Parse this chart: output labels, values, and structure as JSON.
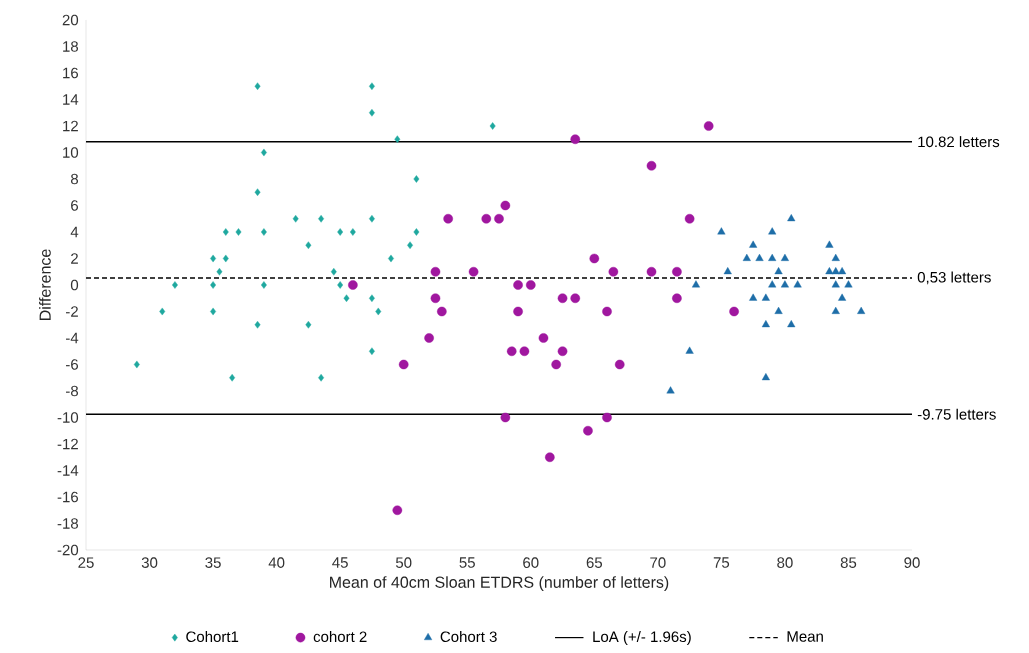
{
  "chart_data": {
    "type": "scatter",
    "xlabel": "Mean of 40cm Sloan ETDRS (number of letters)",
    "ylabel": "Difference",
    "xlim": [
      25,
      90
    ],
    "xticks": [
      25,
      30,
      35,
      40,
      45,
      50,
      55,
      60,
      65,
      70,
      75,
      80,
      85,
      90
    ],
    "ylim": [
      -20,
      20
    ],
    "yticks": [
      -20,
      -18,
      -16,
      -14,
      -12,
      -10,
      -8,
      -6,
      -4,
      -2,
      0,
      2,
      4,
      6,
      8,
      10,
      12,
      14,
      16,
      18,
      20
    ],
    "grid": false,
    "legend": "bottom",
    "series": [
      {
        "name": "Cohort1",
        "color": "#1fa89f",
        "marker": "diamond",
        "x": [
          29,
          31,
          32,
          35,
          35,
          35,
          35.5,
          36,
          36,
          36.5,
          37,
          38.5,
          38.5,
          38.5,
          39,
          39,
          39,
          41.5,
          42.5,
          42.5,
          43.5,
          43.5,
          44.5,
          45,
          45,
          45.5,
          46,
          47.5,
          47.5,
          47.5,
          47.5,
          47.5,
          48,
          49,
          49.5,
          50.5,
          51,
          51,
          57
        ],
        "values": [
          -6,
          -2,
          0,
          2,
          0,
          -2,
          1,
          4,
          2,
          -7,
          4,
          15,
          7,
          -3,
          10,
          4,
          0,
          5,
          3,
          -3,
          5,
          -7,
          1,
          4,
          0,
          -1,
          4,
          15,
          13,
          5,
          -1,
          -5,
          -2,
          2,
          11,
          3,
          8,
          4,
          12
        ]
      },
      {
        "name": "cohort 2",
        "color": "#a0179f",
        "marker": "circle",
        "x": [
          46,
          50,
          49.5,
          52,
          52.5,
          52.5,
          53,
          53.5,
          55.5,
          56.5,
          57.5,
          58,
          58,
          58.5,
          59,
          59,
          59.5,
          60,
          61,
          61.5,
          62,
          62.5,
          62.5,
          63.5,
          63.5,
          64.5,
          65,
          66,
          66,
          66.5,
          67,
          69.5,
          69.5,
          71.5,
          71.5,
          72.5,
          74,
          76
        ],
        "values": [
          0,
          -6,
          -17,
          -4,
          1,
          -1,
          -2,
          5,
          1,
          5,
          5,
          6,
          -10,
          -5,
          0,
          -2,
          -5,
          0,
          -4,
          -13,
          -6,
          -1,
          -5,
          11,
          -1,
          -11,
          2,
          -2,
          -10,
          1,
          -6,
          9,
          1,
          1,
          -1,
          5,
          12,
          -2
        ]
      },
      {
        "name": "Cohort 3",
        "color": "#1e6ea8",
        "marker": "triangle",
        "x": [
          71,
          72.5,
          73,
          75,
          75.5,
          77,
          77.5,
          77.5,
          78,
          78.5,
          78.5,
          78.5,
          79,
          79,
          79,
          79.5,
          79.5,
          80,
          80,
          80.5,
          80.5,
          81,
          83.5,
          83.5,
          84,
          84,
          84,
          84.5,
          84.5,
          85,
          86,
          84
        ],
        "values": [
          -8,
          -5,
          0,
          4,
          1,
          2,
          3,
          -1,
          2,
          -1,
          -3,
          -7,
          4,
          2,
          0,
          1,
          -2,
          2,
          0,
          5,
          -3,
          0,
          3,
          1,
          2,
          0,
          -2,
          1,
          -1,
          0,
          -2,
          1
        ]
      }
    ],
    "ref_lines": [
      {
        "axis": "y",
        "value": 10.82,
        "label": "10.82 letters",
        "color": "#000000",
        "line_style": "solid"
      },
      {
        "axis": "y",
        "value": 0.53,
        "label": "0,53 letters",
        "color": "#000000",
        "line_style": "dashed"
      },
      {
        "axis": "y",
        "value": -9.75,
        "label": "-9.75 letters",
        "color": "#000000",
        "line_style": "solid"
      }
    ],
    "annotations": [
      "LoA (+/- 1.96s)",
      "Mean"
    ]
  }
}
